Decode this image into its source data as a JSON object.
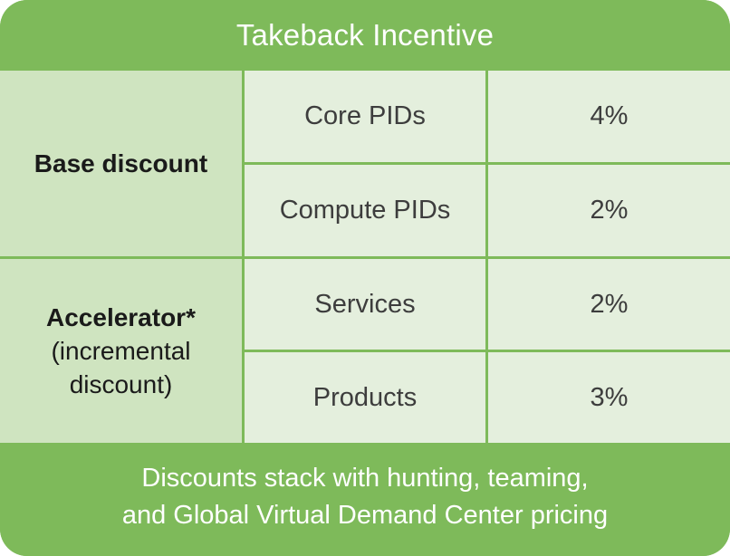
{
  "title": "Takeback Incentive",
  "groups": [
    {
      "label_bold": "Base discount",
      "label_rest": "",
      "rows": [
        {
          "item": "Core PIDs",
          "value": "4%"
        },
        {
          "item": "Compute PIDs",
          "value": "2%"
        }
      ]
    },
    {
      "label_bold": "Accelerator*",
      "label_rest": "(incremental discount)",
      "rows": [
        {
          "item": "Services",
          "value": "2%"
        },
        {
          "item": "Products",
          "value": "3%"
        }
      ]
    }
  ],
  "footer": {
    "line1": "Discounts stack with hunting, teaming,",
    "line2": "and Global Virtual Demand Center pricing"
  },
  "colors": {
    "header_bg": "#7eba5a",
    "label_bg": "#cfe4c0",
    "cell_bg": "#e4efdd",
    "divider": "#ffffff"
  }
}
